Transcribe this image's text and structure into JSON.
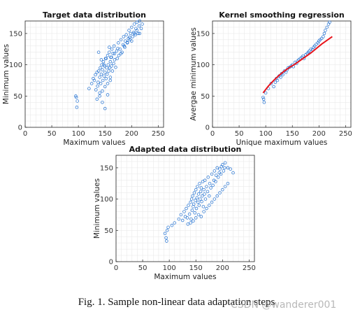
{
  "caption": "Fig. 1.   Sample non-linear data adaptation steps",
  "watermark": "CSDN @wanderer001",
  "colors": {
    "points": "#1f6fd0",
    "curve": "#e8141b",
    "grid": "#e6e6e6",
    "axis": "#222222"
  },
  "chart_data": [
    {
      "type": "scatter",
      "title": "Target data distribution",
      "xlabel": "Maximum values",
      "ylabel": "Minimum values",
      "xlim": [
        0,
        260
      ],
      "ylim": [
        0,
        170
      ],
      "xticks": [
        0,
        50,
        100,
        150,
        200,
        250
      ],
      "yticks": [
        0,
        50,
        100,
        150
      ],
      "grid": true,
      "series": [
        {
          "x": [
            95,
            96,
            98,
            97,
            120,
            125,
            128,
            130,
            132,
            133,
            135,
            136,
            137,
            138,
            140,
            140,
            141,
            142,
            143,
            144,
            145,
            145,
            146,
            147,
            148,
            149,
            150,
            150,
            151,
            152,
            153,
            154,
            155,
            155,
            156,
            157,
            158,
            159,
            160,
            160,
            161,
            162,
            163,
            164,
            165,
            166,
            167,
            168,
            170,
            172,
            173,
            175,
            176,
            178,
            180,
            182,
            184,
            185,
            187,
            188,
            190,
            192,
            194,
            195,
            197,
            198,
            200,
            202,
            204,
            205,
            207,
            208,
            210,
            212,
            214,
            215,
            218,
            220,
            135,
            140,
            145,
            150,
            155,
            160,
            148,
            152,
            143,
            138,
            158,
            162,
            168,
            174,
            180,
            186,
            192,
            196,
            200,
            205,
            210,
            215
          ],
          "y": [
            50,
            48,
            42,
            32,
            62,
            70,
            78,
            75,
            84,
            60,
            88,
            66,
            72,
            90,
            80,
            55,
            95,
            70,
            85,
            100,
            40,
            92,
            75,
            105,
            82,
            98,
            30,
            88,
            110,
            78,
            95,
            85,
            115,
            70,
            100,
            90,
            120,
            95,
            105,
            80,
            112,
            98,
            125,
            90,
            118,
            102,
            130,
            108,
            96,
            122,
            110,
            135,
            115,
            125,
            140,
            120,
            132,
            145,
            128,
            138,
            148,
            135,
            142,
            155,
            140,
            150,
            160,
            145,
            152,
            165,
            148,
            158,
            168,
            150,
            162,
            170,
            158,
            165,
            45,
            50,
            58,
            65,
            52,
            75,
            100,
            110,
            108,
            120,
            128,
            112,
            118,
            126,
            118,
            130,
            136,
            144,
            138,
            150,
            155,
            150
          ]
        }
      ]
    },
    {
      "type": "scatter",
      "title": "Kernel smoothing regression",
      "xlabel": "Unique maximum values",
      "ylabel": "Avergae minimum values",
      "xlim": [
        0,
        260
      ],
      "ylim": [
        0,
        170
      ],
      "xticks": [
        0,
        50,
        100,
        150,
        200,
        250
      ],
      "yticks": [
        0,
        50,
        100,
        150
      ],
      "grid": true,
      "series": [
        {
          "x": [
            95,
            96,
            97,
            100,
            105,
            110,
            115,
            118,
            120,
            122,
            125,
            128,
            130,
            132,
            135,
            138,
            140,
            142,
            145,
            148,
            150,
            152,
            155,
            158,
            160,
            162,
            165,
            168,
            170,
            172,
            175,
            178,
            180,
            182,
            185,
            188,
            190,
            192,
            195,
            198,
            200,
            202,
            205,
            208,
            210,
            212,
            215,
            218,
            220
          ],
          "y": [
            48,
            45,
            40,
            55,
            62,
            70,
            65,
            72,
            78,
            75,
            82,
            80,
            86,
            84,
            90,
            88,
            92,
            95,
            96,
            98,
            100,
            97,
            104,
            102,
            106,
            108,
            110,
            112,
            114,
            110,
            116,
            118,
            120,
            122,
            125,
            124,
            128,
            130,
            133,
            135,
            138,
            140,
            142,
            145,
            150,
            155,
            160,
            165,
            168
          ]
        },
        {
          "name": "",
          "x": [
            95,
            105,
            115,
            125,
            135,
            145,
            155,
            165,
            175,
            185,
            195,
            205,
            215,
            225
          ],
          "y": [
            55,
            66,
            75,
            83,
            90,
            96,
            101,
            107,
            113,
            119,
            126,
            133,
            139,
            145
          ]
        }
      ]
    },
    {
      "type": "scatter",
      "title": "Adapted data distribution",
      "xlabel": "Maximum values",
      "ylabel": "Minimum values",
      "xlim": [
        0,
        260
      ],
      "ylim": [
        0,
        170
      ],
      "xticks": [
        0,
        50,
        100,
        150,
        200,
        250
      ],
      "yticks": [
        0,
        50,
        100,
        150
      ],
      "grid": true,
      "series": [
        {
          "x": [
            92,
            94,
            95,
            96,
            98,
            105,
            110,
            118,
            122,
            125,
            128,
            130,
            132,
            134,
            136,
            138,
            140,
            141,
            142,
            143,
            144,
            145,
            146,
            147,
            148,
            149,
            150,
            151,
            152,
            153,
            154,
            155,
            156,
            157,
            158,
            159,
            160,
            161,
            162,
            163,
            164,
            165,
            166,
            167,
            168,
            170,
            172,
            173,
            175,
            176,
            178,
            180,
            182,
            184,
            185,
            187,
            188,
            190,
            192,
            194,
            195,
            197,
            198,
            200,
            202,
            204,
            205,
            210,
            215,
            220,
            135,
            140,
            145,
            150,
            155,
            160,
            165,
            170,
            175,
            180,
            185,
            190,
            195,
            200,
            205,
            210
          ],
          "y": [
            45,
            38,
            33,
            50,
            55,
            58,
            62,
            68,
            75,
            66,
            80,
            72,
            85,
            70,
            90,
            76,
            95,
            68,
            100,
            82,
            105,
            88,
            92,
            110,
            78,
            98,
            115,
            85,
            102,
            120,
            95,
            108,
            90,
            125,
            100,
            112,
            118,
            96,
            105,
            128,
            88,
            115,
            108,
            130,
            100,
            120,
            112,
            135,
            105,
            125,
            118,
            140,
            122,
            130,
            145,
            128,
            138,
            150,
            135,
            142,
            148,
            140,
            152,
            155,
            145,
            150,
            158,
            150,
            148,
            142,
            60,
            62,
            65,
            70,
            75,
            72,
            80,
            85,
            90,
            95,
            100,
            105,
            110,
            115,
            120,
            125
          ]
        }
      ]
    }
  ]
}
